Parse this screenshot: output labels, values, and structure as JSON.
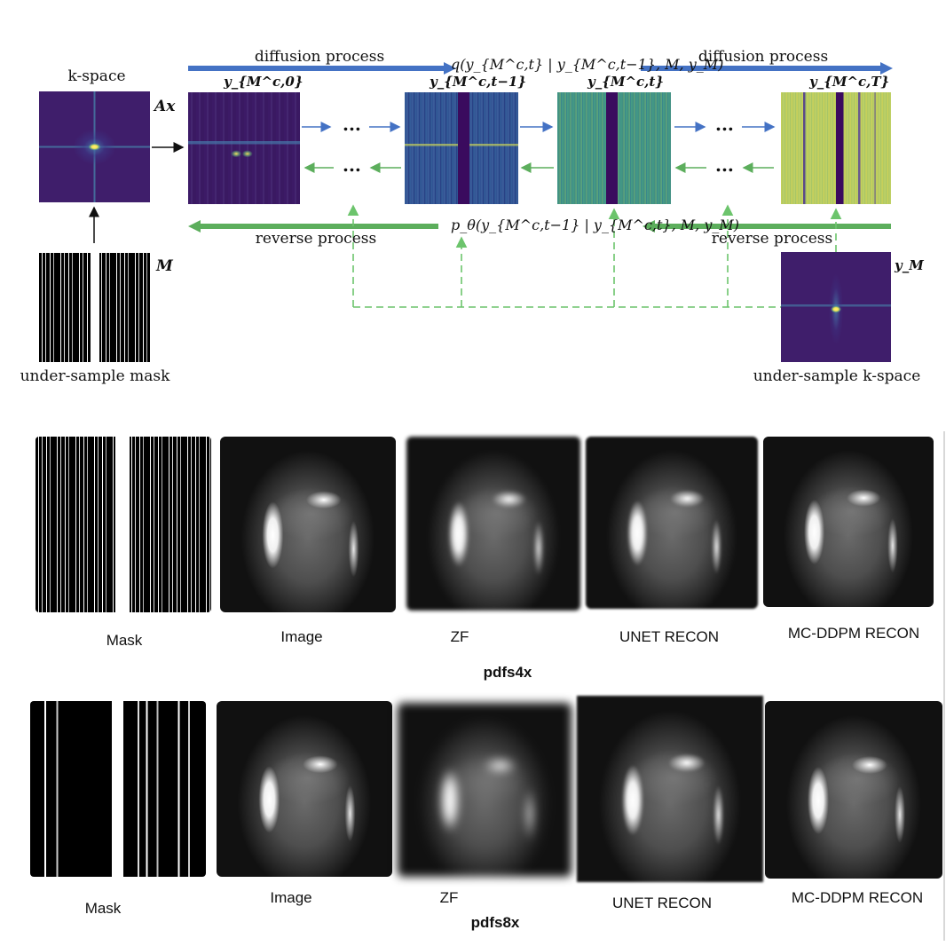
{
  "diagram": {
    "kspace_label": "k-space",
    "ax_label": "Ax",
    "m_label": "M",
    "mask_caption": "under-sample mask",
    "ym_label": "y_M",
    "kspace_caption": "under-sample k-space",
    "diffusion_left": "diffusion process",
    "diffusion_right": "diffusion process",
    "reverse_left": "reverse process",
    "reverse_right": "reverse process",
    "q_formula": "q(y_{M^c,t} | y_{M^c,t−1}, M, y_M)",
    "p_formula": "p_θ(y_{M^c,t−1} | y_{M^c,t}, M, y_M)",
    "state_labels": [
      "y_{M^c,0}",
      "y_{M^c,t−1}",
      "y_{M^c,t}",
      "y_{M^c,T}"
    ],
    "ellipsis": "...",
    "colors": {
      "forward_arrow": "#4472c4",
      "reverse_arrow": "#5cae5c",
      "dashed_arrow": "#6cc46c"
    }
  },
  "results": [
    {
      "name": "pdfs4x",
      "captions": [
        "Mask",
        "Image",
        "ZF",
        "UNET RECON",
        "MC-DDPM RECON"
      ]
    },
    {
      "name": "pdfs8x",
      "captions": [
        "Mask",
        "Image",
        "ZF",
        "UNET RECON",
        "MC-DDPM RECON"
      ]
    }
  ]
}
